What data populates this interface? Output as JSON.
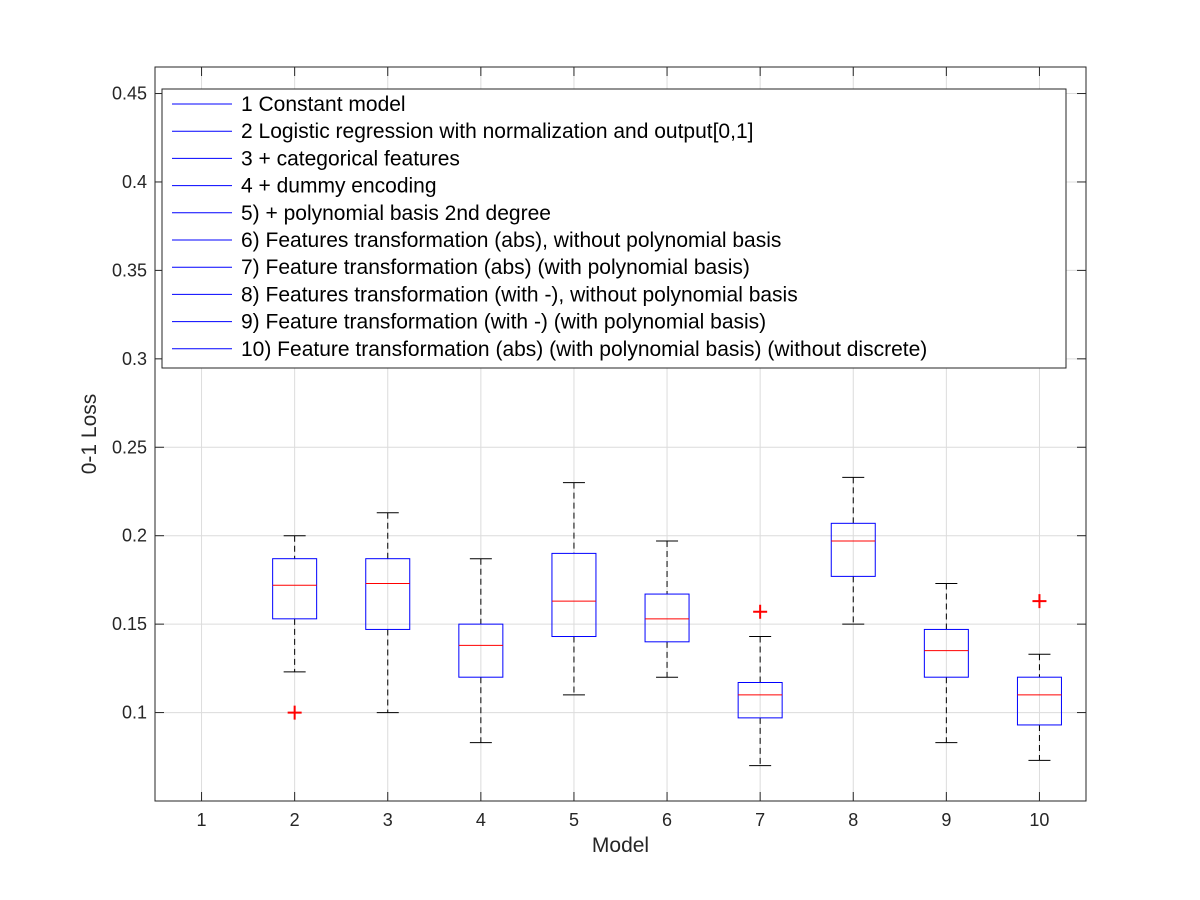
{
  "chart_data": {
    "type": "box",
    "xlabel": "Model",
    "ylabel": "0-1 Loss",
    "ylim": [
      0.05,
      0.465
    ],
    "xlim": [
      0.5,
      10.5
    ],
    "grid": true,
    "legend_position": "top",
    "y_ticks": [
      0.1,
      0.15,
      0.2,
      0.25,
      0.3,
      0.35,
      0.4,
      0.45
    ],
    "y_tick_labels": [
      "0.1",
      "0.15",
      "0.2",
      "0.25",
      "0.3",
      "0.35",
      "0.4",
      "0.45"
    ],
    "categories": [
      "1",
      "2",
      "3",
      "4",
      "5",
      "6",
      "7",
      "8",
      "9",
      "10"
    ],
    "series": [
      {
        "name": "1 Constant model",
        "whisker_low": null,
        "q1": null,
        "median": null,
        "q3": null,
        "whisker_high": null,
        "outliers": []
      },
      {
        "name": "2 Logistic regression with normalization and output[0,1]",
        "whisker_low": 0.123,
        "q1": 0.153,
        "median": 0.172,
        "q3": 0.187,
        "whisker_high": 0.2,
        "outliers": [
          0.1
        ]
      },
      {
        "name": "3 + categorical features",
        "whisker_low": 0.1,
        "q1": 0.147,
        "median": 0.173,
        "q3": 0.187,
        "whisker_high": 0.213,
        "outliers": []
      },
      {
        "name": "4 + dummy encoding",
        "whisker_low": 0.083,
        "q1": 0.12,
        "median": 0.138,
        "q3": 0.15,
        "whisker_high": 0.187,
        "outliers": []
      },
      {
        "name": "5) + polynomial basis 2nd degree",
        "whisker_low": 0.11,
        "q1": 0.143,
        "median": 0.163,
        "q3": 0.19,
        "whisker_high": 0.23,
        "outliers": []
      },
      {
        "name": "6) Features transformation (abs), without polynomial basis",
        "whisker_low": 0.12,
        "q1": 0.14,
        "median": 0.153,
        "q3": 0.167,
        "whisker_high": 0.197,
        "outliers": []
      },
      {
        "name": "7) Feature transformation (abs) (with polynomial basis)",
        "whisker_low": 0.07,
        "q1": 0.097,
        "median": 0.11,
        "q3": 0.117,
        "whisker_high": 0.143,
        "outliers": [
          0.157
        ]
      },
      {
        "name": "8) Features transformation (with -), without polynomial basis",
        "whisker_low": 0.15,
        "q1": 0.177,
        "median": 0.197,
        "q3": 0.207,
        "whisker_high": 0.233,
        "outliers": []
      },
      {
        "name": "9) Feature transformation (with -) (with polynomial basis)",
        "whisker_low": 0.083,
        "q1": 0.12,
        "median": 0.135,
        "q3": 0.147,
        "whisker_high": 0.173,
        "outliers": []
      },
      {
        "name": "10) Feature transformation (abs) (with polynomial basis) (without discrete)",
        "whisker_low": 0.073,
        "q1": 0.093,
        "median": 0.11,
        "q3": 0.12,
        "whisker_high": 0.133,
        "outliers": [
          0.163
        ]
      }
    ],
    "colors": {
      "box": "#0000ff",
      "median": "#ff0000",
      "whisker": "#000000",
      "outlier": "#ff0000",
      "grid": "#dcdcdc",
      "axis": "#262626"
    }
  }
}
